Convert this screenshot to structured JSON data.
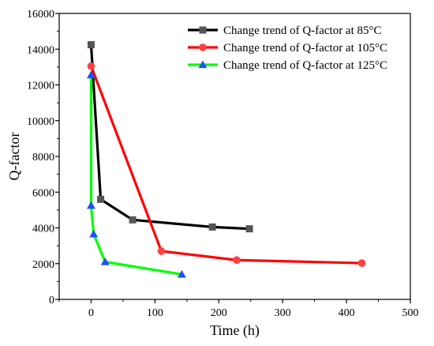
{
  "chart_data": {
    "type": "line",
    "xlabel": "Time (h)",
    "ylabel": "Q-factor",
    "xlim": [
      -50,
      500
    ],
    "ylim": [
      0,
      16000
    ],
    "xticks": [
      0,
      100,
      200,
      300,
      400,
      500
    ],
    "yticks": [
      0,
      2000,
      4000,
      6000,
      8000,
      10000,
      12000,
      14000,
      16000
    ],
    "grid": false,
    "legend_position": "top-right",
    "series": [
      {
        "name": "Change trend of Q-factor at 85°C",
        "color": "#000000",
        "marker": "square",
        "marker_color": "#555555",
        "points": [
          [
            0,
            14250
          ],
          [
            15,
            5600
          ],
          [
            65,
            4450
          ],
          [
            190,
            4050
          ],
          [
            248,
            3950
          ]
        ]
      },
      {
        "name": "Change trend of Q-factor at 105°C",
        "color": "#ff0000",
        "marker": "circle",
        "marker_color": "#ff4040",
        "points": [
          [
            0,
            13050
          ],
          [
            110,
            2700
          ],
          [
            228,
            2200
          ],
          [
            424,
            2030
          ]
        ]
      },
      {
        "name": "Change trend of Q-factor at 125°C",
        "color": "#00ff00",
        "marker": "triangle",
        "marker_color": "#1f4fff",
        "points": [
          [
            0,
            12550
          ],
          [
            0,
            5250
          ],
          [
            4,
            3650
          ],
          [
            22,
            2100
          ],
          [
            142,
            1400
          ]
        ]
      }
    ]
  }
}
